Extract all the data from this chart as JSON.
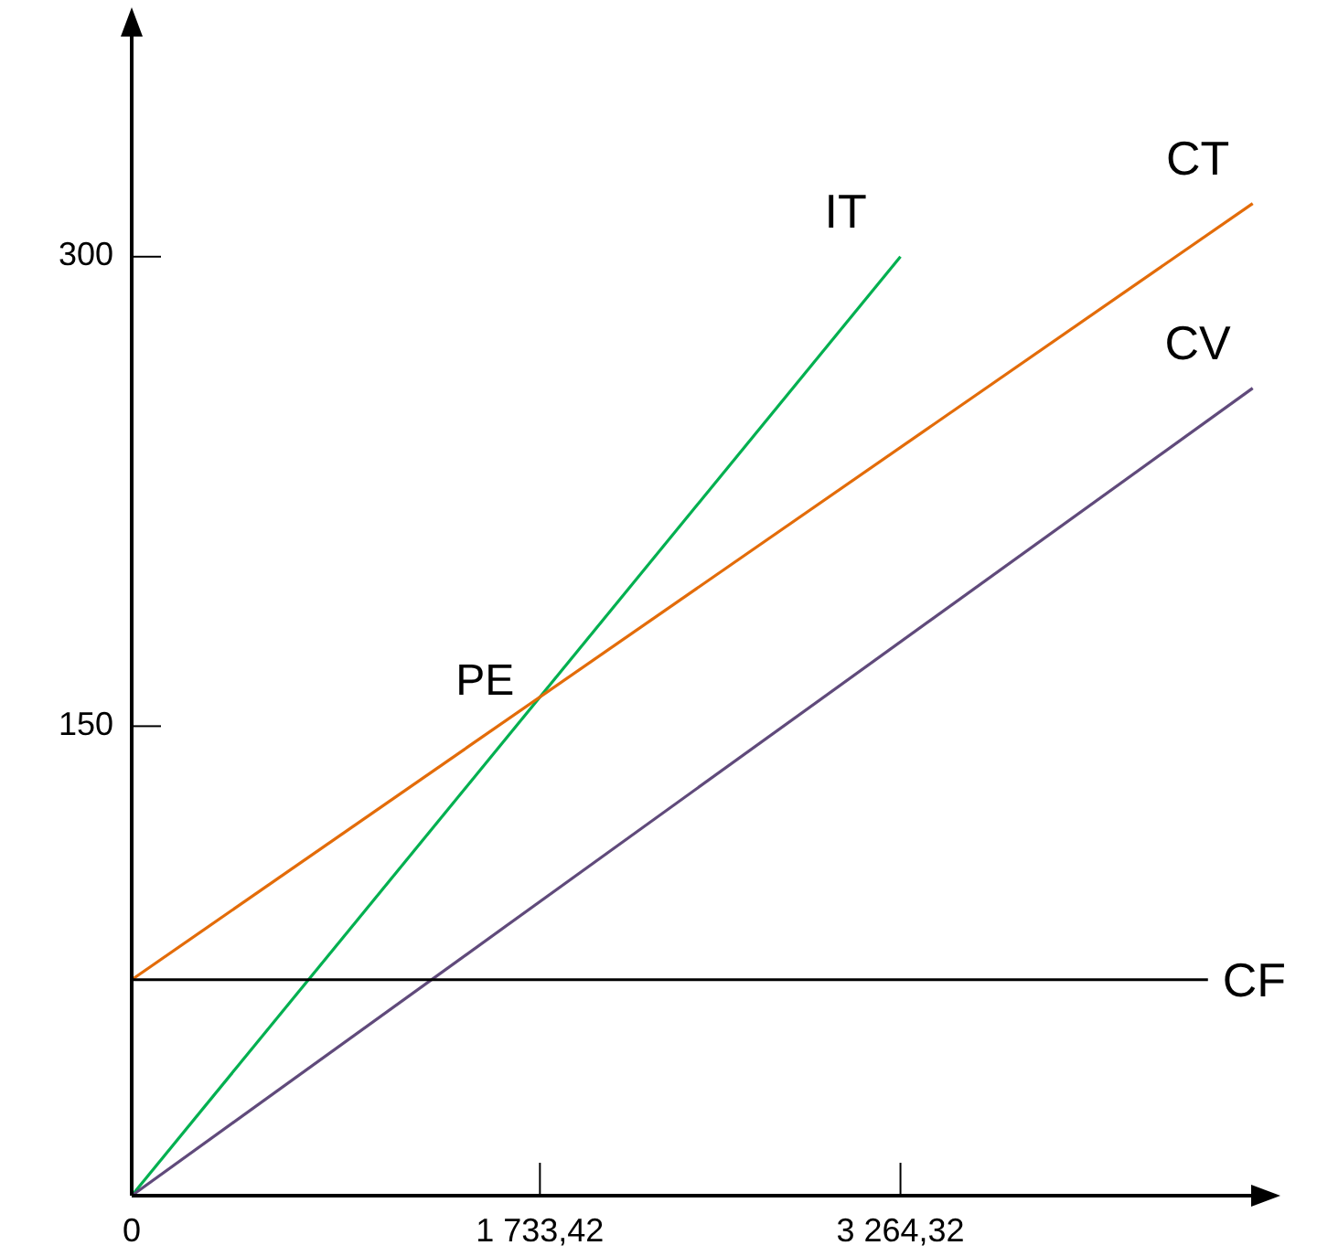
{
  "chart_data": {
    "type": "line",
    "xlim": [
      0,
      4800
    ],
    "ylim": [
      0,
      375
    ],
    "xticks": [
      {
        "value": 0,
        "label": "0"
      },
      {
        "value": 1733.42,
        "label": "1 733,42"
      },
      {
        "value": 3264.32,
        "label": "3 264,32"
      }
    ],
    "yticks": [
      150,
      300
    ],
    "grid": false,
    "legend": false,
    "marker": "none",
    "line_style": "solid",
    "series": [
      {
        "name": "IT",
        "color": "#00b050",
        "x": [
          0,
          3264.32
        ],
        "values": [
          0,
          300
        ]
      },
      {
        "name": "CT",
        "color": "#e36c09",
        "x": [
          0,
          4760
        ],
        "values": [
          69,
          317
        ]
      },
      {
        "name": "CV",
        "color": "#604a7b",
        "x": [
          0,
          4760
        ],
        "values": [
          0,
          258
        ]
      },
      {
        "name": "CF",
        "color": "#000000",
        "x": [
          0,
          4570
        ],
        "values": [
          69,
          69
        ]
      }
    ],
    "annotations": [
      {
        "text": "PE",
        "x": 1733.42,
        "y": 159
      }
    ]
  }
}
